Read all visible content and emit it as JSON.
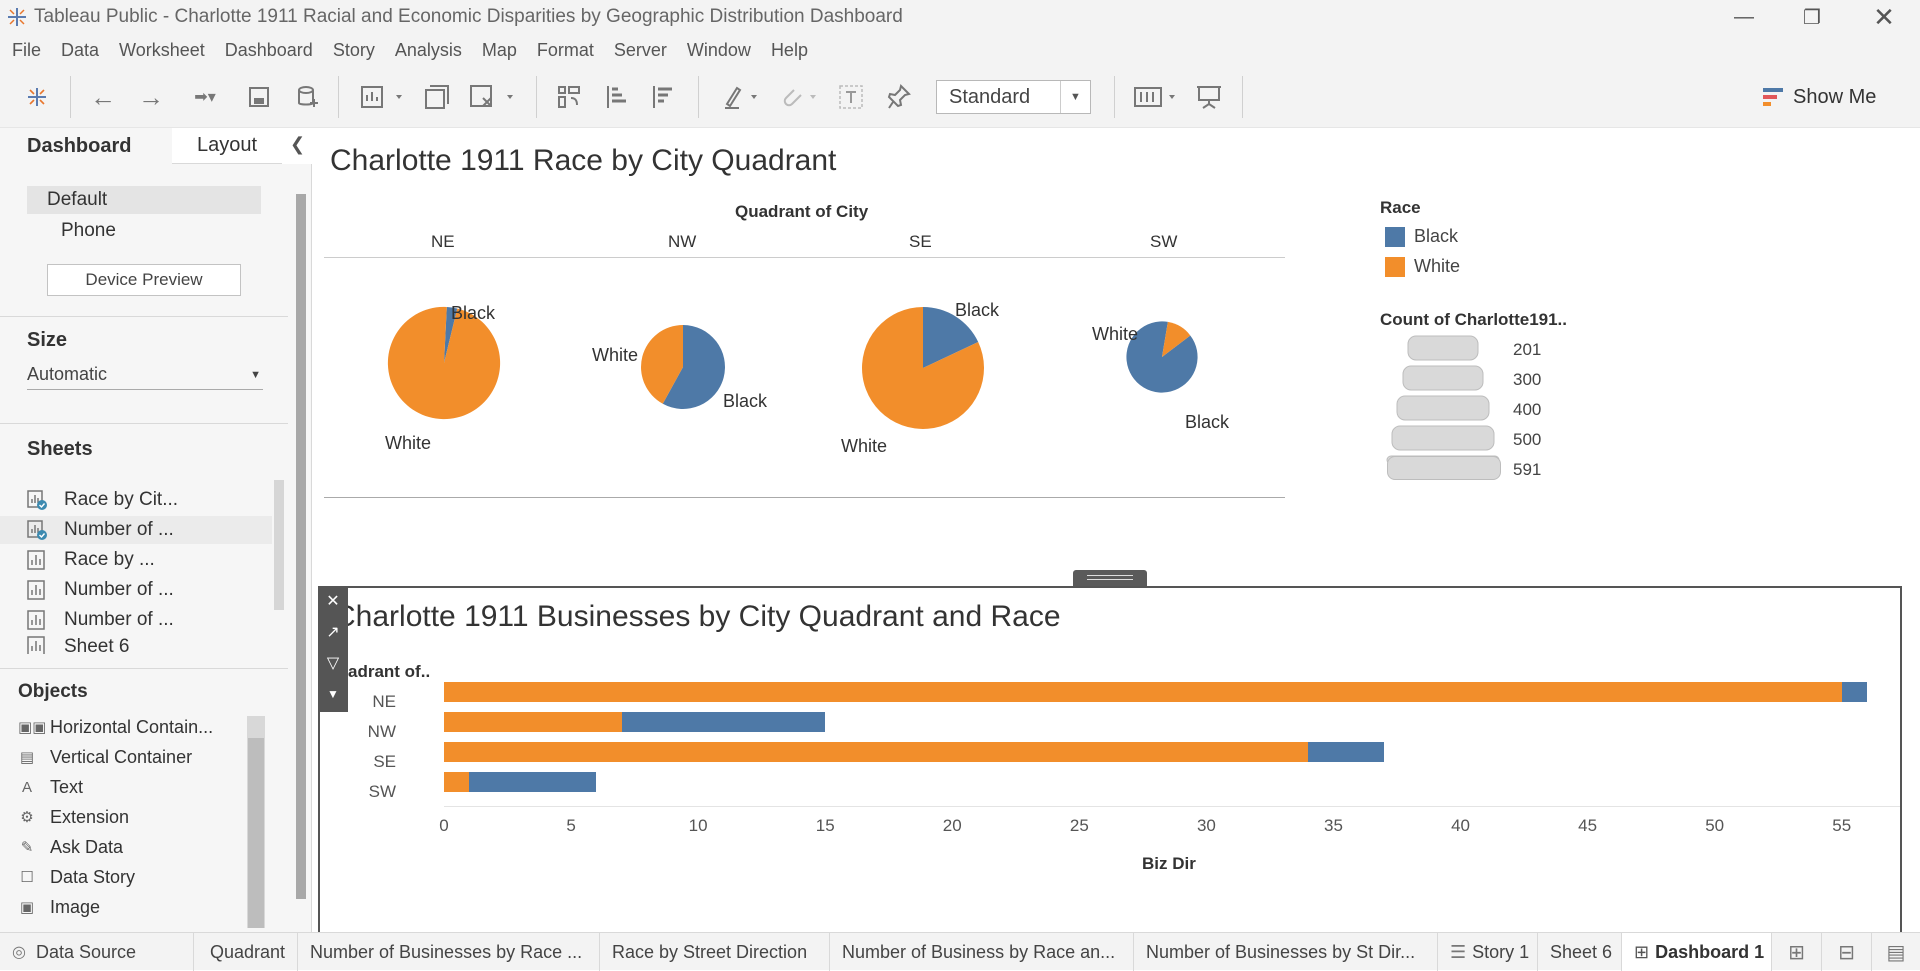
{
  "window": {
    "title": "Tableau Public - Charlotte 1911 Racial and Economic Disparities by Geographic Distribution Dashboard"
  },
  "menu": [
    "File",
    "Data",
    "Worksheet",
    "Dashboard",
    "Story",
    "Analysis",
    "Map",
    "Format",
    "Server",
    "Window",
    "Help"
  ],
  "toolbar": {
    "fit_value": "Standard",
    "show_me_label": "Show Me"
  },
  "sidebar": {
    "tab_dashboard": "Dashboard",
    "tab_layout": "Layout",
    "device_default": "Default",
    "device_phone": "Phone",
    "device_preview_label": "Device Preview",
    "size_heading": "Size",
    "size_value": "Automatic",
    "sheets_heading": "Sheets",
    "sheets": [
      "Race by Cit...",
      "Number of ...",
      "Race by ...",
      "Number of ...",
      "Number of ...",
      "Sheet 6"
    ],
    "objects_heading": "Objects",
    "objects": [
      "Horizontal Contain...",
      "Vertical Container",
      "Text",
      "Extension",
      "Ask Data",
      "Data Story",
      "Image"
    ]
  },
  "pies": {
    "title": "Charlotte 1911 Race by City Quadrant",
    "column_header": "Quadrant of City",
    "quadrants": [
      "NE",
      "NW",
      "SE",
      "SW"
    ],
    "label_black": "Black",
    "label_white": "White",
    "legend_race_title": "Race",
    "legend_race": [
      {
        "name": "Black",
        "color": "#4e79a7"
      },
      {
        "name": "White",
        "color": "#f28e2b"
      }
    ],
    "legend_size_title": "Count of Charlotte191..",
    "legend_size_values": [
      "201",
      "300",
      "400",
      "500",
      "591"
    ]
  },
  "bars": {
    "title": "Charlotte 1911 Businesses by City Quadrant and Race",
    "row_header": "adrant of..",
    "x_label": "Biz Dir",
    "x_ticks": [
      "0",
      "5",
      "10",
      "15",
      "20",
      "25",
      "30",
      "35",
      "40",
      "45",
      "50",
      "55"
    ]
  },
  "colors": {
    "black": "#4e79a7",
    "white": "#f28e2b"
  },
  "chart_data": [
    {
      "type": "pie",
      "title": "Charlotte 1911 Race by City Quadrant",
      "categories": [
        "NE",
        "NW",
        "SE",
        "SW"
      ],
      "series": [
        {
          "name": "Black",
          "values": [
            0.03,
            0.58,
            0.18,
            0.88
          ]
        },
        {
          "name": "White",
          "values": [
            0.97,
            0.42,
            0.82,
            0.12
          ]
        }
      ],
      "size_measure": "Count of Charlotte191..",
      "size_values": [
        500,
        280,
        591,
        201
      ]
    },
    {
      "type": "bar",
      "title": "Charlotte 1911 Businesses by City Quadrant and Race",
      "categories": [
        "NE",
        "NW",
        "SE",
        "SW"
      ],
      "series": [
        {
          "name": "White",
          "values": [
            55,
            7,
            34,
            1
          ]
        },
        {
          "name": "Black",
          "values": [
            1,
            8,
            3,
            5
          ]
        }
      ],
      "xlabel": "Biz Dir",
      "xlim": [
        0,
        58
      ]
    }
  ],
  "bottom_tabs": [
    "Data Source",
    "Quadrant",
    "Number of Businesses by Race ...",
    "Race by Street Direction",
    "Number of Business by Race an...",
    "Number of Businesses by St Dir...",
    "Story 1",
    "Sheet 6",
    "Dashboard 1"
  ]
}
